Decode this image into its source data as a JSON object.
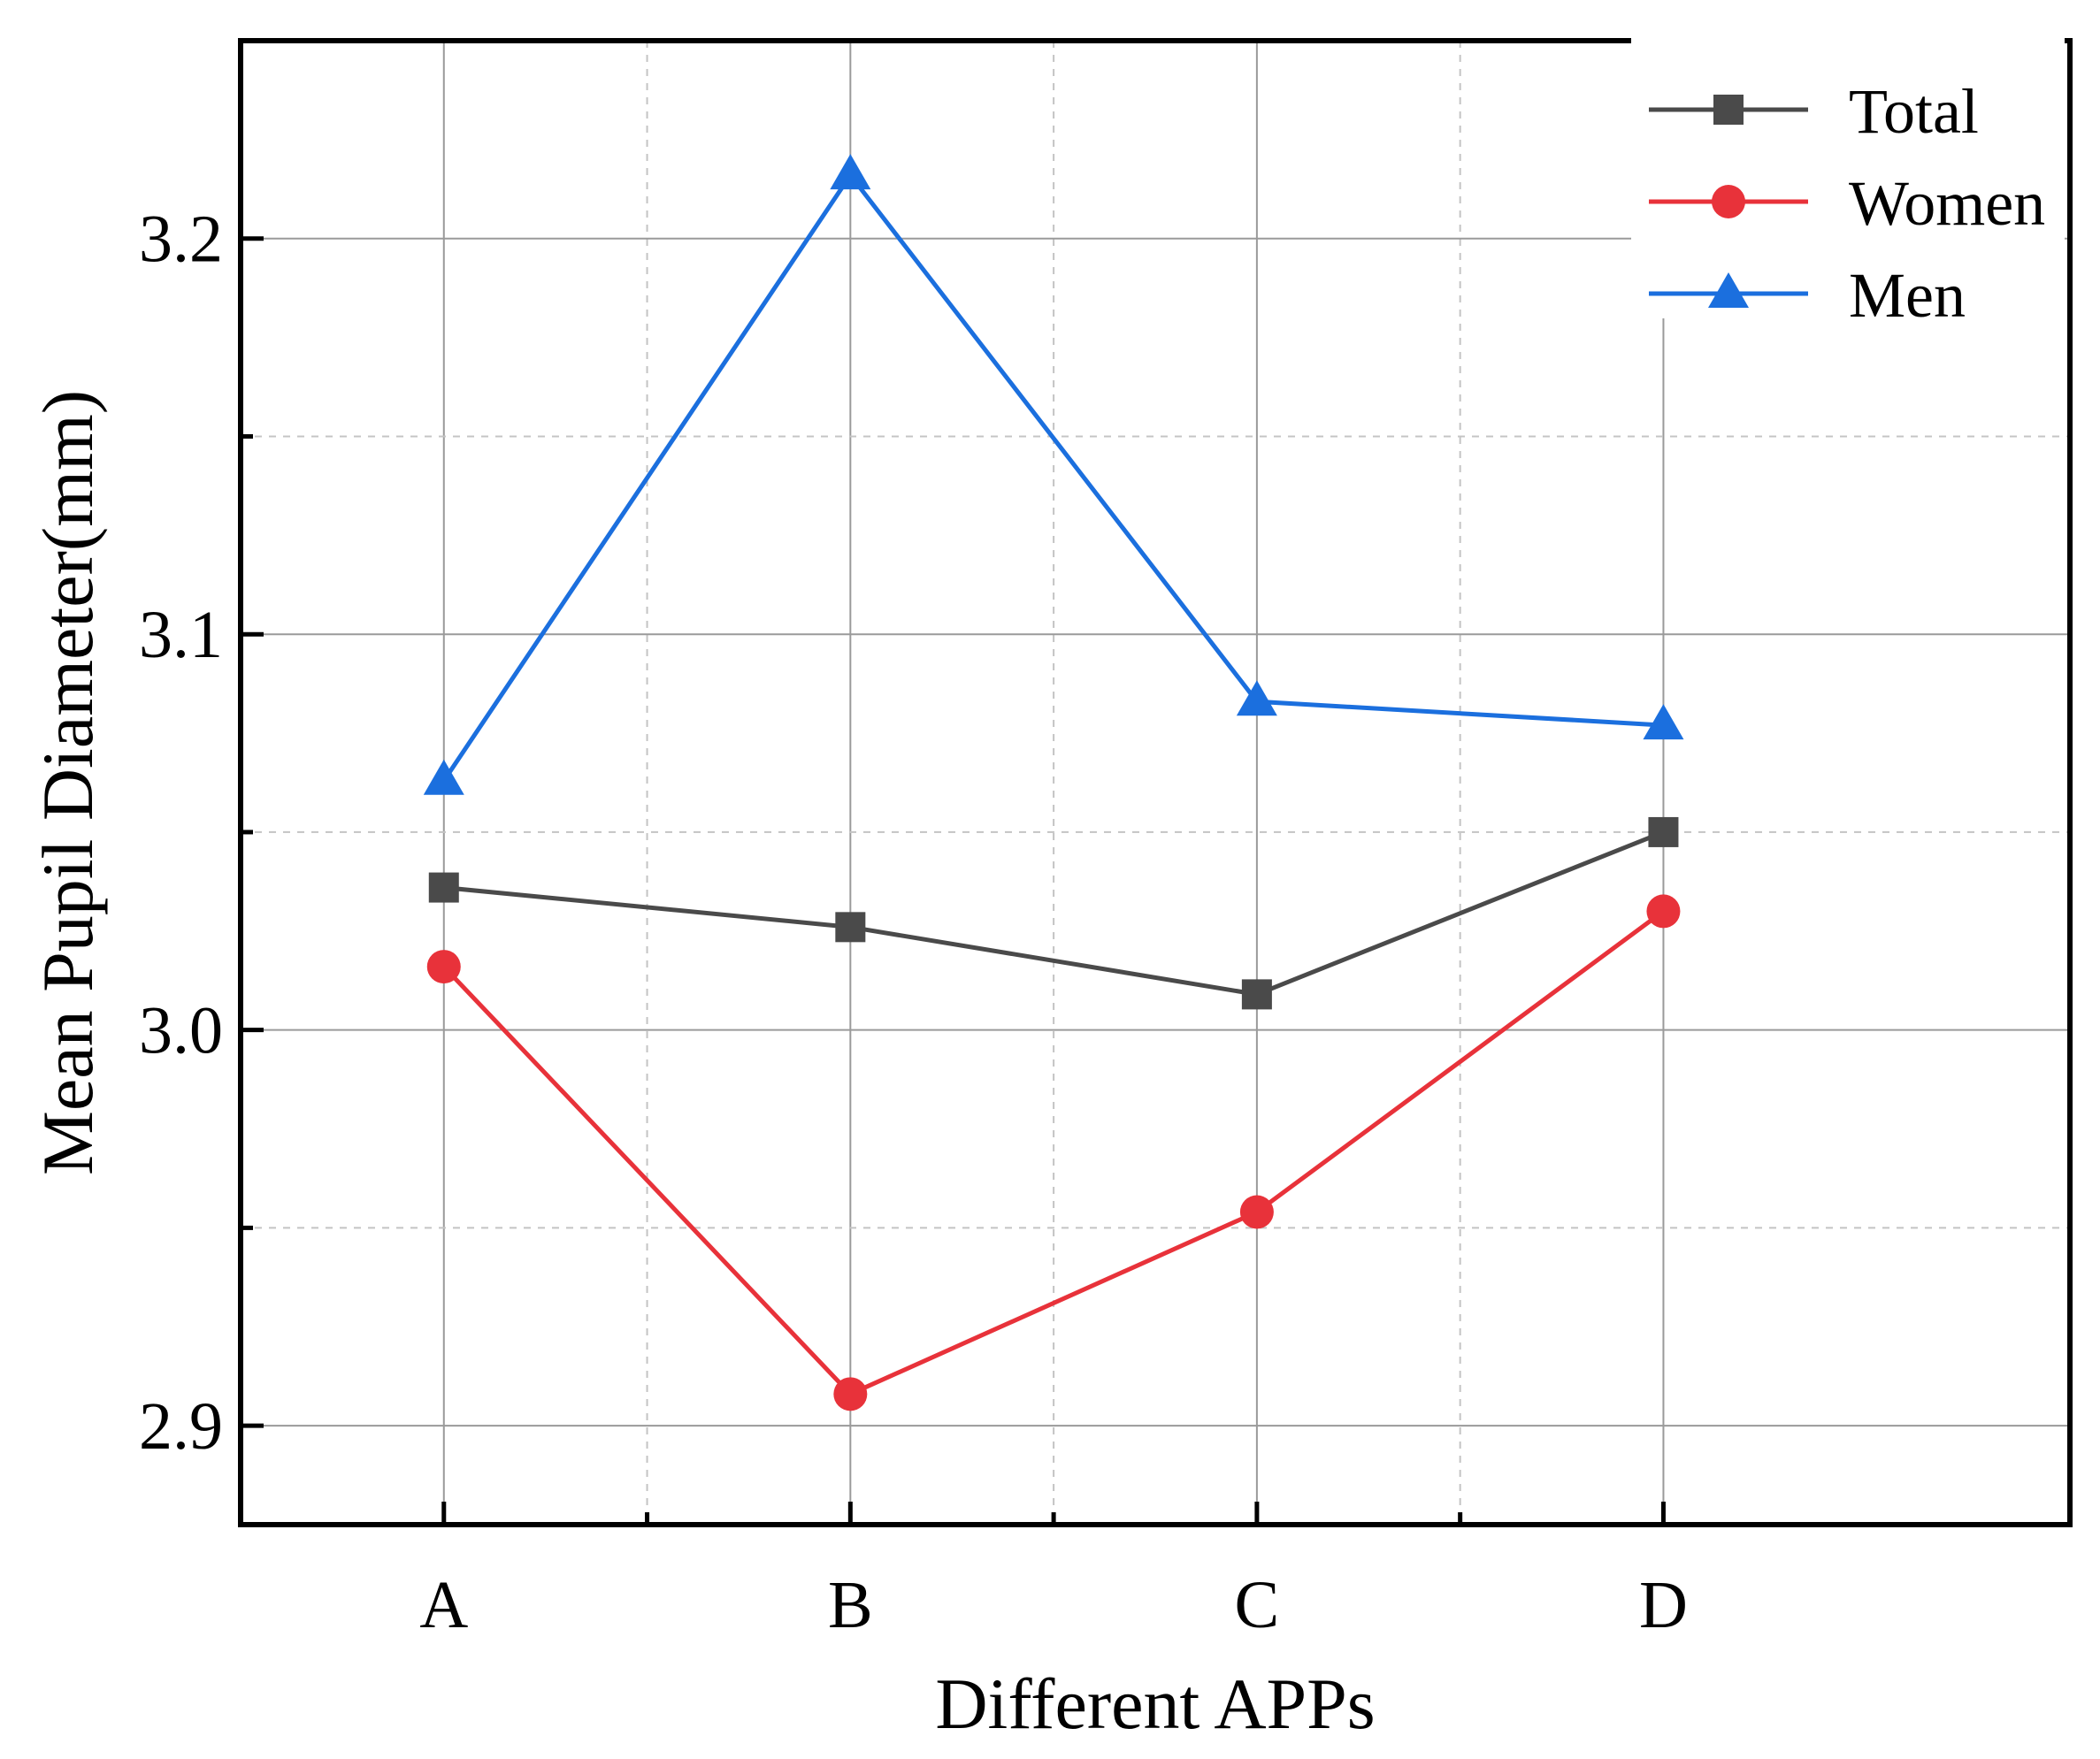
{
  "chart_data": {
    "type": "line",
    "title": "",
    "xlabel": "Different APPs",
    "ylabel": "Mean Pupil Diameter(mm)",
    "categories": [
      "A",
      "B",
      "C",
      "D"
    ],
    "ylim": [
      2.875,
      3.25
    ],
    "yticks": [
      2.9,
      3.0,
      3.1,
      3.2
    ],
    "ytick_labels": [
      "2.9",
      "3.0",
      "3.1",
      "3.2"
    ],
    "grid": true,
    "legend_position": "top-right",
    "series": [
      {
        "name": "Total",
        "color": "#4a4a4a",
        "marker": "square",
        "values": [
          3.036,
          3.026,
          3.009,
          3.05
        ]
      },
      {
        "name": "Women",
        "color": "#e8323a",
        "marker": "circle",
        "values": [
          3.016,
          2.908,
          2.954,
          3.03
        ]
      },
      {
        "name": "Men",
        "color": "#1b6fde",
        "marker": "triangle",
        "values": [
          3.063,
          3.216,
          3.083,
          3.077
        ]
      }
    ]
  }
}
